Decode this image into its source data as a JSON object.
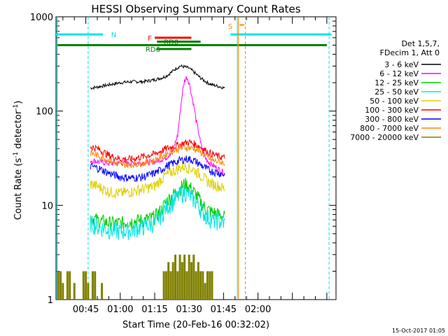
{
  "chart_data": {
    "type": "line",
    "title": "HESSI Observing Summary Count Rates",
    "xlabel": "Start Time (20-Feb-16 00:32:02)",
    "ylabel_main": "Count Rate (s",
    "ylabel_sup1": "-1",
    "ylabel_mid": " detector",
    "ylabel_sup2": "-1",
    "ylabel_end": ")",
    "yscale": "log",
    "ylim": [
      1,
      1000
    ],
    "xlim_minutes": [
      32,
      154
    ],
    "footer_date": "15-Oct-2017 01:05",
    "xticks": [
      {
        "m": 45,
        "label": "00:45"
      },
      {
        "m": 60,
        "label": "01:00"
      },
      {
        "m": 75,
        "label": "01:15"
      },
      {
        "m": 90,
        "label": "01:30"
      },
      {
        "m": 105,
        "label": "01:45"
      },
      {
        "m": 120,
        "label": "02:00"
      }
    ],
    "yticks": [
      {
        "v": 1,
        "label": "1"
      },
      {
        "v": 10,
        "label": "10"
      },
      {
        "v": 100,
        "label": "100"
      },
      {
        "v": 1000,
        "label": "1000"
      }
    ],
    "legend": {
      "header": [
        "Det 1,5,7,",
        "FDecim 1, Att 0"
      ],
      "position": "right"
    },
    "series": [
      {
        "name": "3 - 6 keV",
        "color": "#000000",
        "x": [
          47,
          50,
          55,
          60,
          65,
          70,
          75,
          78,
          80,
          82,
          84,
          86,
          88,
          90,
          92,
          94,
          96,
          98,
          100,
          102,
          104,
          105.5
        ],
        "y": [
          175,
          180,
          190,
          200,
          205,
          205,
          215,
          225,
          235,
          255,
          280,
          300,
          295,
          285,
          260,
          235,
          215,
          200,
          190,
          185,
          180,
          175
        ]
      },
      {
        "name": "6 - 12 keV",
        "color": "#ff00ff",
        "x": [
          47,
          55,
          65,
          75,
          80,
          83,
          85,
          86,
          87,
          88,
          89,
          90,
          91,
          93,
          95,
          97,
          99,
          102,
          105.5
        ],
        "y": [
          30,
          28,
          28,
          29,
          32,
          38,
          55,
          90,
          150,
          210,
          230,
          200,
          150,
          80,
          45,
          32,
          28,
          25,
          22
        ]
      },
      {
        "name": "12 - 25 keV",
        "color": "#00cc00",
        "x": [
          47,
          50,
          55,
          60,
          65,
          70,
          75,
          78,
          80,
          83,
          86,
          88,
          90,
          92,
          94,
          96,
          98,
          100,
          103,
          105.5
        ],
        "y": [
          7.5,
          7,
          6.5,
          6.5,
          6.8,
          7,
          7.5,
          9,
          11,
          13,
          15,
          17,
          16,
          14,
          12,
          10,
          9,
          8.5,
          8,
          7.5
        ]
      },
      {
        "name": "25 - 50 keV",
        "color": "#00e5e5",
        "x": [
          47,
          50,
          55,
          60,
          65,
          70,
          75,
          78,
          80,
          83,
          86,
          88,
          90,
          92,
          94,
          96,
          98,
          100,
          103,
          105.5
        ],
        "y": [
          6.5,
          6,
          5.5,
          5.3,
          5.5,
          6,
          6.5,
          8,
          9.5,
          11,
          13,
          14,
          13,
          11.5,
          10,
          8.5,
          7.5,
          7,
          6.8,
          6.5
        ]
      },
      {
        "name": "50 - 100 keV",
        "color": "#e0d000",
        "x": [
          47,
          50,
          55,
          60,
          65,
          70,
          75,
          78,
          80,
          83,
          86,
          88,
          90,
          92,
          94,
          96,
          98,
          100,
          103,
          105.5
        ],
        "y": [
          17,
          16,
          14,
          13.5,
          14,
          15,
          16,
          19,
          21,
          23,
          25,
          26,
          25,
          24,
          22,
          20,
          18,
          17,
          16,
          15
        ]
      },
      {
        "name": "100 - 300 keV",
        "color": "#ff0000",
        "x": [
          47,
          50,
          55,
          60,
          65,
          70,
          75,
          78,
          80,
          83,
          86,
          88,
          90,
          92,
          94,
          96,
          98,
          100,
          103,
          105.5
        ],
        "y": [
          42,
          40,
          34,
          31,
          31,
          33,
          35,
          38,
          40,
          42,
          44,
          46,
          47,
          45,
          43,
          40,
          37,
          35,
          33,
          32
        ]
      },
      {
        "name": "300 - 800 keV",
        "color": "#0000ff",
        "x": [
          47,
          50,
          55,
          60,
          65,
          70,
          75,
          78,
          80,
          83,
          86,
          88,
          90,
          92,
          94,
          96,
          98,
          100,
          103,
          105.5
        ],
        "y": [
          26,
          25,
          22,
          20,
          19.5,
          20,
          22,
          24,
          26,
          28,
          30,
          31,
          31,
          30,
          28,
          26,
          24,
          23,
          22,
          21
        ]
      },
      {
        "name": "800 - 7000 keV",
        "color": "#ff8800",
        "x": [
          47,
          50,
          55,
          60,
          65,
          70,
          75,
          78,
          80,
          83,
          86,
          88,
          90,
          92,
          94,
          96,
          98,
          100,
          103,
          105.5
        ],
        "y": [
          36,
          34,
          30,
          27,
          27,
          28,
          30,
          33,
          35,
          38,
          40,
          41,
          41,
          40,
          38,
          35,
          32,
          30,
          29,
          28
        ]
      },
      {
        "name": "7000 - 20000 keV",
        "color": "#808000",
        "x": [],
        "y": []
      }
    ]
  }
}
